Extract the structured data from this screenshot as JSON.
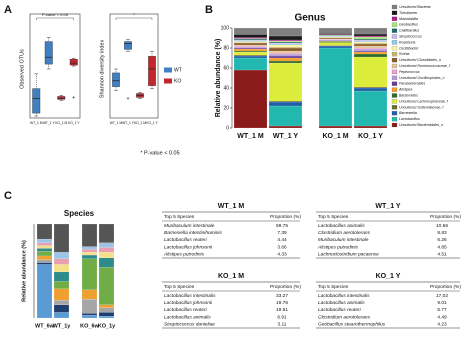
{
  "panel_labels": [
    "A",
    "B",
    "C"
  ],
  "footnote": "* P-value < 0.05",
  "chart_data": [
    {
      "type": "box",
      "ylabel": "Observed OTUs",
      "annotation": "P-value < 0.05",
      "categories": [
        "WT_1 M",
        "WT_1 Y",
        "KO_1 M",
        "KO_1 Y"
      ],
      "box_colors": [
        "#3f7fc4",
        "#3f7fc4",
        "#c1272d",
        "#c1272d"
      ],
      "ylim": [
        0,
        100
      ],
      "boxes": [
        {
          "min": 2,
          "q1": 5,
          "median": 20,
          "q3": 30,
          "max": 45,
          "outliers": []
        },
        {
          "min": 50,
          "q1": 55,
          "median": 62,
          "q3": 78,
          "max": 82,
          "outliers": []
        },
        {
          "min": 18,
          "q1": 19,
          "median": 20,
          "q3": 22,
          "max": 23,
          "outliers": []
        },
        {
          "min": 53,
          "q1": 54,
          "median": 56,
          "q3": 60,
          "max": 61,
          "outliers": [
            21
          ]
        }
      ]
    },
    {
      "type": "box",
      "ylabel": "Shannon diversity index",
      "annotation": "*",
      "categories": [
        "WT_1 M",
        "WT_1 Y",
        "KO_1 M",
        "KO_1 Y"
      ],
      "box_colors": [
        "#3f7fc4",
        "#3f7fc4",
        "#c1272d",
        "#c1272d"
      ],
      "ylim": [
        0,
        100
      ],
      "legend": [
        {
          "name": "WT",
          "color": "#3f7fc4"
        },
        {
          "name": "KO",
          "color": "#c1272d"
        }
      ],
      "boxes": [
        {
          "min": 28,
          "q1": 32,
          "median": 38,
          "q3": 46,
          "max": 50,
          "outliers": []
        },
        {
          "min": 68,
          "q1": 70,
          "median": 76,
          "q3": 78,
          "max": 80,
          "outliers": [
            20
          ]
        },
        {
          "min": 20,
          "q1": 21,
          "median": 23,
          "q3": 25,
          "max": 26,
          "outliers": []
        },
        {
          "min": 30,
          "q1": 33,
          "median": 50,
          "q3": 63,
          "max": 68,
          "outliers": []
        }
      ]
    },
    {
      "type": "stacked-bar",
      "title": "Genus",
      "ylabel": "Relative abundance (%)",
      "categories": [
        "WT_1 M",
        "WT_1 Y",
        "KO_1 M",
        "KO_1 Y"
      ],
      "ylim": [
        0,
        100
      ],
      "yticks": [
        0,
        20,
        40,
        60,
        80,
        100
      ],
      "series": [
        {
          "name": "Uncultured Bacteria",
          "color": "#7f7f7f",
          "values": [
            6.5,
            8,
            5.5,
            6
          ]
        },
        {
          "name": "Turicibacter",
          "color": "#1a1a1a",
          "values": [
            3,
            4,
            1,
            2
          ]
        },
        {
          "name": "Marinilabilia",
          "color": "#b0208a",
          "values": [
            1,
            1,
            0.5,
            1
          ]
        },
        {
          "name": "Geobacillus",
          "color": "#a8e07a",
          "values": [
            0.5,
            1,
            0.5,
            2
          ]
        },
        {
          "name": "Caldibacillus",
          "color": "#1f6b6b",
          "values": [
            1,
            1,
            0.5,
            1
          ]
        },
        {
          "name": "Streptococcus",
          "color": "#c6b8e8",
          "values": [
            0.5,
            1,
            0.5,
            1
          ]
        },
        {
          "name": "Roseburia",
          "color": "#8fc8e8",
          "values": [
            1,
            1,
            0.5,
            1
          ]
        },
        {
          "name": "Oscillibacter",
          "color": "#fff3a0",
          "values": [
            1,
            2,
            0.5,
            1
          ]
        },
        {
          "name": "Rothia",
          "color": "#c8b46a",
          "values": [
            0.5,
            1,
            0.5,
            1
          ]
        },
        {
          "name": "Uncultured Clostridiales_o",
          "color": "#8b5a2b",
          "values": [
            2,
            3,
            1,
            2
          ]
        },
        {
          "name": "Uncultured Ruminococcaceae_f",
          "color": "#e0c49a",
          "values": [
            1,
            2,
            0.5,
            2
          ]
        },
        {
          "name": "Peptococcus",
          "color": "#f2a0c0",
          "values": [
            1,
            1,
            0.5,
            1
          ]
        },
        {
          "name": "Uncultured Oscillospirales_o",
          "color": "#b49ad8",
          "values": [
            1,
            2,
            0.5,
            2
          ]
        },
        {
          "name": "Parabacteroides",
          "color": "#6a3d9a",
          "values": [
            1,
            2,
            0.5,
            1
          ]
        },
        {
          "name": "Alistipes",
          "color": "#f39c28",
          "values": [
            2,
            3,
            0.5,
            2
          ]
        },
        {
          "name": "Bacteroides",
          "color": "#2e6b2e",
          "values": [
            1,
            2,
            1,
            3
          ]
        },
        {
          "name": "Uncultured Lachnospiraceae_f",
          "color": "#dcec3a",
          "values": [
            3,
            38,
            3,
            30
          ]
        },
        {
          "name": "Uncultured Sutterellaceae_f",
          "color": "#6b6b2e",
          "values": [
            1,
            1,
            0.5,
            1
          ]
        },
        {
          "name": "Barnesiella",
          "color": "#1f5fa8",
          "values": [
            2,
            4,
            2,
            3
          ]
        },
        {
          "name": "Lactobacillus",
          "color": "#22b8b0",
          "values": [
            12,
            20,
            78,
            35
          ]
        },
        {
          "name": "Uncultured Bacteroidales_o",
          "color": "#8b1a1a",
          "values": [
            58,
            2,
            2,
            2
          ]
        }
      ]
    },
    {
      "type": "stacked-bar",
      "title": "Species",
      "ylabel": "Relative abundance (%)",
      "categories": [
        "WT_6w",
        "WT_1y",
        "KO_6w",
        "KO_1y"
      ],
      "ylim": [
        0,
        100
      ],
      "series": [
        {
          "color": "#555555",
          "values": [
            16,
            30,
            24,
            20
          ]
        },
        {
          "color": "#9dc3e6",
          "values": [
            4,
            7,
            3,
            5
          ]
        },
        {
          "color": "#e8a0b0",
          "values": [
            3,
            6,
            3,
            5
          ]
        },
        {
          "color": "#f5e08a",
          "values": [
            3,
            8,
            3,
            6
          ]
        },
        {
          "color": "#2e8b8b",
          "values": [
            3,
            10,
            4,
            10
          ]
        },
        {
          "color": "#70ad47",
          "values": [
            5,
            8,
            33,
            40
          ]
        },
        {
          "color": "#f0a030",
          "values": [
            4,
            12,
            10,
            3
          ]
        },
        {
          "color": "#a6a6a6",
          "values": [
            3,
            5,
            15,
            5
          ]
        },
        {
          "color": "#1f3f6e",
          "values": [
            2,
            8,
            2,
            4
          ]
        },
        {
          "color": "#5b9bd5",
          "values": [
            57,
            6,
            3,
            2
          ]
        }
      ]
    }
  ],
  "tables": [
    {
      "title": "WT_1 M",
      "header": [
        "Top 5 Species",
        "Proportion (%)"
      ],
      "rows": [
        [
          "Muribaculum intestinale",
          59.75
        ],
        [
          "Barnesiella intestinihominis",
          7.39
        ],
        [
          "Lactobacillus reuteri",
          4.44
        ],
        [
          "Lactobacillus johnsonii",
          3.66
        ],
        [
          "Alistipes putredinis",
          4.33
        ]
      ]
    },
    {
      "title": "WT_1 Y",
      "header": [
        "Top 5 Species",
        "Proportion (%)"
      ],
      "rows": [
        [
          "Lactobacillus animalis",
          10.56
        ],
        [
          "Clostridium aerotolerans",
          8.83
        ],
        [
          "Muribaculum intestinale",
          6.26
        ],
        [
          "Alistipes putredinis",
          4.85
        ],
        [
          "Lachnoclostridium pacaense",
          4.51
        ]
      ]
    },
    {
      "title": "KO_1 M",
      "header": [
        "Top 5 Species",
        "Proportion (%)"
      ],
      "rows": [
        [
          "Lactobacillus intestinalis",
          33.27
        ],
        [
          "Lactobacillus johnsonii",
          19.76
        ],
        [
          "Lactobacillus reuteri",
          19.51
        ],
        [
          "Lactobacillus animalis",
          6.91
        ],
        [
          "Streptococcus danieliae",
          3.11
        ]
      ]
    },
    {
      "title": "KO_1 Y",
      "header": [
        "Top 5 Species",
        "Proportion (%)"
      ],
      "rows": [
        [
          "Lactobacillus intestinalis",
          17.02
        ],
        [
          "Lactobacillus animalis",
          9.01
        ],
        [
          "Lactobacillus reuteri",
          5.77
        ],
        [
          "Clostridium aerotolerans",
          4.49
        ],
        [
          "Geobacillus stearothermophilus",
          4.23
        ]
      ]
    }
  ]
}
